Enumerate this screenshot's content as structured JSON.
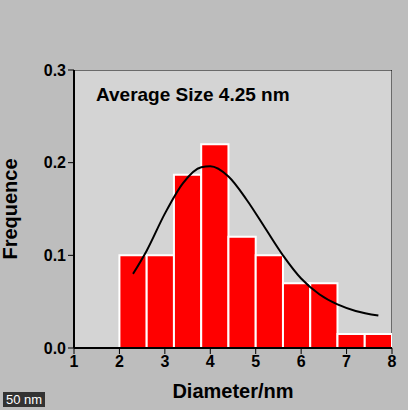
{
  "chart_data": {
    "type": "histogram",
    "annotations": [
      "Average Size 4.25 nm",
      "50 nm"
    ],
    "x_label": "Diameter/nm",
    "y_label": "Frequence",
    "bins": [
      2,
      2.6,
      3.2,
      3.8,
      4.4,
      5.0,
      5.6,
      6.2,
      6.8,
      7.4,
      8.0
    ],
    "values": [
      0.1,
      0.1,
      0.187,
      0.22,
      0.12,
      0.1,
      0.07,
      0.07,
      0.015,
      0.015
    ],
    "color": "#ff0000",
    "xlim": [
      1,
      8
    ],
    "xticks": [
      1,
      2,
      3,
      4,
      5,
      6,
      7,
      8
    ],
    "ylim": [
      0,
      0.3
    ],
    "yticks": [
      {
        "value": 0,
        "label": "0.0"
      },
      0.1,
      0.2,
      0.3
    ],
    "grid": false,
    "fit_curve": {
      "type": "line",
      "x": [
        2.3,
        2.6,
        3.0,
        3.4,
        3.8,
        4.0,
        4.4,
        4.8,
        5.2,
        5.6,
        6.0,
        6.4,
        6.8,
        7.2,
        7.7
      ],
      "values": [
        0.08,
        0.105,
        0.145,
        0.178,
        0.195,
        0.196,
        0.185,
        0.16,
        0.13,
        0.1,
        0.075,
        0.058,
        0.047,
        0.04,
        0.035
      ],
      "color": "#000000",
      "line_style": "solid"
    }
  }
}
